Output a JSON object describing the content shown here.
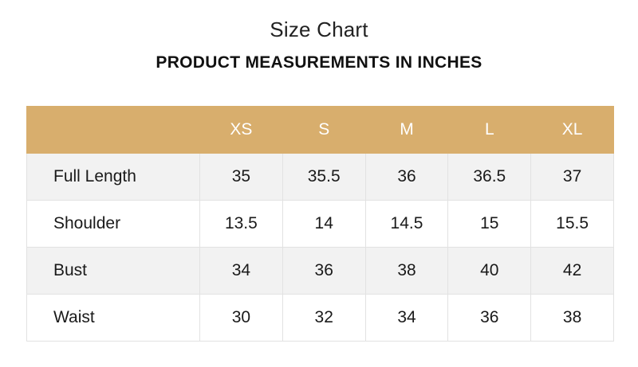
{
  "title": "Size Chart",
  "subtitle": "PRODUCT MEASUREMENTS IN INCHES",
  "table": {
    "corner": "",
    "sizes": [
      "XS",
      "S",
      "M",
      "L",
      "XL"
    ],
    "rows": [
      {
        "label": "Full Length",
        "values": [
          "35",
          "35.5",
          "36",
          "36.5",
          "37"
        ]
      },
      {
        "label": "Shoulder",
        "values": [
          "13.5",
          "14",
          "14.5",
          "15",
          "15.5"
        ]
      },
      {
        "label": "Bust",
        "values": [
          "34",
          "36",
          "38",
          "40",
          "42"
        ]
      },
      {
        "label": "Waist",
        "values": [
          "30",
          "32",
          "34",
          "36",
          "38"
        ]
      }
    ]
  },
  "colors": {
    "header_background": "#d8ae6d",
    "header_text": "#ffffff",
    "stripe_background": "#f2f2f2"
  }
}
